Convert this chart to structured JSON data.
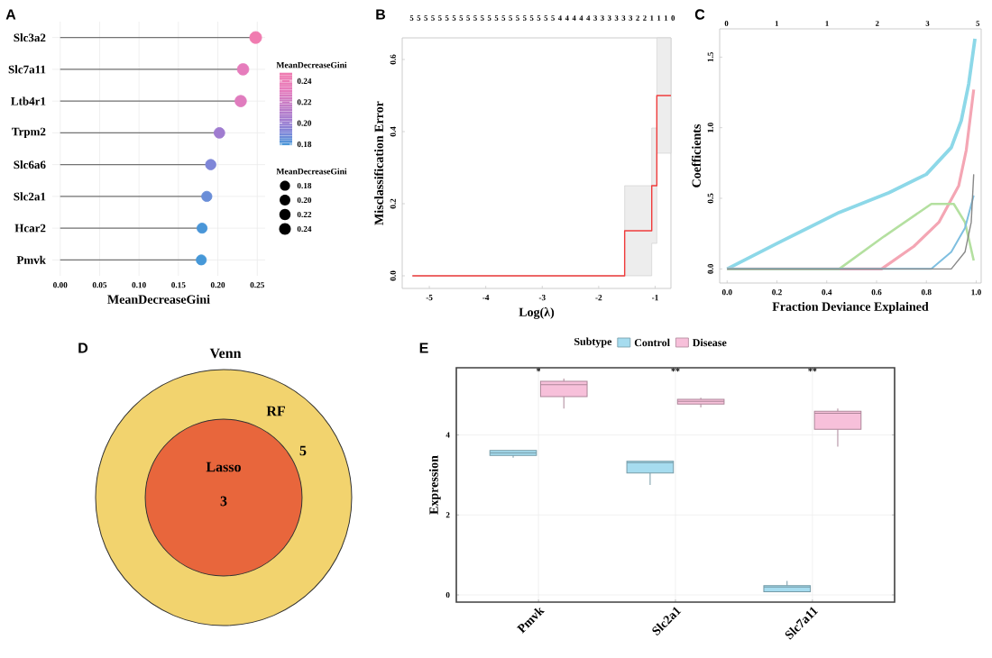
{
  "chart_data": [
    {
      "type": "lollipop",
      "orientation": "horizontal",
      "annotations": [
        "A"
      ],
      "categories": [
        "Slc3a2",
        "Slc7a11",
        "Ltb4r1",
        "Trpm2",
        "Slc6a6",
        "Slc2a1",
        "Hcar2",
        "Pmvk"
      ],
      "values": [
        0.248,
        0.232,
        0.229,
        0.202,
        0.191,
        0.186,
        0.18,
        0.179
      ],
      "colors": [
        "#f07cb0",
        "#e67cbc",
        "#e07cbe",
        "#a07cd0",
        "#7e86d8",
        "#6a8ed8",
        "#4a96d8",
        "#4698d8"
      ],
      "sizes": [
        0.248,
        0.232,
        0.229,
        0.202,
        0.191,
        0.186,
        0.18,
        0.179
      ],
      "size_legend": [
        {
          "value": 0.18,
          "label": "0.18"
        },
        {
          "value": 0.2,
          "label": "0.20"
        },
        {
          "value": 0.22,
          "label": "0.22"
        },
        {
          "value": 0.24,
          "label": "0.24"
        }
      ],
      "legend_title": "MeanDecreaseGini",
      "clabel": "MeanDecreaseGini",
      "clim": [
        0.179,
        0.248
      ],
      "cticks": [
        {
          "value": 0.18,
          "label": "0.18"
        },
        {
          "value": 0.2,
          "label": "0.20"
        },
        {
          "value": 0.22,
          "label": "0.22"
        },
        {
          "value": 0.24,
          "label": "0.24"
        }
      ],
      "xlabel": "MeanDecreaseGini",
      "xlim": [
        -0.01,
        0.26
      ],
      "xticks": [
        {
          "value": 0,
          "label": "0.00"
        },
        {
          "value": 0.05,
          "label": "0.05"
        },
        {
          "value": 0.1,
          "label": "0.10"
        },
        {
          "value": 0.15,
          "label": "0.15"
        },
        {
          "value": 0.2,
          "label": "0.20"
        },
        {
          "value": 0.25,
          "label": "0.25"
        }
      ],
      "grid": true
    },
    {
      "type": "step",
      "annotations": [
        "B",
        "5 5 5 5 5 5 5 5 5 5 5 5 5 5 5 5 5 5 5 5 5 4 4 4 4 4 3 3 3 3 3 3 2 2 1 1 1 0"
      ],
      "xlabel": "Log(λ)",
      "ylabel": "Misclassification Error",
      "xlim": [
        -5.48,
        -0.72
      ],
      "ylim": [
        -0.035,
        0.66
      ],
      "xticks": [
        -5,
        -4,
        -3,
        -2,
        -1
      ],
      "yticks": [
        {
          "value": 0,
          "label": "0.0"
        },
        {
          "value": 0.2,
          "label": "0.2"
        },
        {
          "value": 0.4,
          "label": "0.4"
        },
        {
          "value": 0.6,
          "label": "0.6"
        }
      ],
      "series": [
        {
          "color": "#f03c3c",
          "x": [
            -5.3,
            -1.54,
            -1.06,
            -0.97,
            -0.72
          ],
          "values": [
            0,
            0.125,
            0.25,
            0.5,
            0.5
          ],
          "lower": [
            0,
            0,
            0.09,
            0.34,
            0.34
          ],
          "upper": [
            0,
            0.25,
            0.41,
            0.66,
            0.66
          ]
        }
      ]
    },
    {
      "type": "line",
      "annotations": [
        "C",
        "0 1 1 2 3 5"
      ],
      "xlabel": "Fraction Deviance Explained",
      "ylabel": "Coefficients",
      "xlim": [
        -0.03,
        1.02
      ],
      "ylim": [
        -0.1,
        1.7
      ],
      "xticks": [
        {
          "value": 0,
          "label": "0.0"
        },
        {
          "value": 0.2,
          "label": "0.2"
        },
        {
          "value": 0.4,
          "label": "0.4"
        },
        {
          "value": 0.6,
          "label": "0.6"
        },
        {
          "value": 0.8,
          "label": "0.8"
        },
        {
          "value": 1,
          "label": "1.0"
        }
      ],
      "yticks": [
        {
          "value": 0,
          "label": "0.0"
        },
        {
          "value": 0.5,
          "label": "0.5"
        },
        {
          "value": 1,
          "label": "1.0"
        },
        {
          "value": 1.5,
          "label": "1.5"
        }
      ],
      "series": [
        {
          "color": "#8dd8e8",
          "x": [
            0,
            0.2,
            0.45,
            0.65,
            0.8,
            0.9,
            0.94,
            0.97,
            0.995
          ],
          "values": [
            0,
            0.18,
            0.4,
            0.54,
            0.67,
            0.86,
            1.05,
            1.31,
            1.63
          ]
        },
        {
          "color": "#f4a6b4",
          "x": [
            0,
            0.62,
            0.75,
            0.85,
            0.93,
            0.96,
            0.99
          ],
          "values": [
            0,
            0,
            0.16,
            0.33,
            0.59,
            0.84,
            1.27
          ]
        },
        {
          "color": "#b4e0a0",
          "x": [
            0,
            0.45,
            0.63,
            0.82,
            0.91,
            0.955,
            0.99
          ],
          "values": [
            0,
            0,
            0.23,
            0.46,
            0.46,
            0.33,
            0.06
          ]
        },
        {
          "color": "#7fbfe0",
          "x": [
            0,
            0.82,
            0.9,
            0.955,
            0.99
          ],
          "values": [
            0,
            0,
            0.12,
            0.29,
            0.52
          ]
        },
        {
          "color": "#888888",
          "x": [
            0,
            0.9,
            0.955,
            0.98,
            0.99
          ],
          "values": [
            0,
            0,
            0.12,
            0.33,
            0.67
          ]
        }
      ]
    },
    {
      "type": "other",
      "annotations": [
        "D"
      ],
      "title": "Venn",
      "categories": [
        "RF",
        "Lasso"
      ],
      "values": [
        5,
        3
      ],
      "value_labels": [
        "5",
        "3"
      ],
      "colors": [
        "#f2d36e",
        "#e8663c"
      ]
    },
    {
      "type": "box",
      "annotations": [
        "E",
        "*",
        "**",
        "**"
      ],
      "categories": [
        "Pmvk",
        "Slc2a1",
        "Slc7a11"
      ],
      "ylabel": "Expression",
      "ylim": [
        -0.18,
        5.68
      ],
      "yticks": [
        0,
        2,
        4
      ],
      "grid": true,
      "legend": "top",
      "legend_title": "Subtype",
      "series": [
        {
          "name": "Control",
          "color": "#a6dcef",
          "boxes": [
            {
              "low": 3.43,
              "q1": 3.49,
              "median": 3.55,
              "q3": 3.61,
              "high": 3.62
            },
            {
              "low": 2.75,
              "q1": 3.05,
              "median": 3.31,
              "q3": 3.34,
              "high": 3.34
            },
            {
              "low": 0.08,
              "q1": 0.08,
              "median": 0.2,
              "q3": 0.23,
              "high": 0.35
            }
          ]
        },
        {
          "name": "Disease",
          "color": "#f7c0da",
          "boxes": [
            {
              "low": 4.66,
              "q1": 4.96,
              "median": 5.26,
              "q3": 5.34,
              "high": 5.41
            },
            {
              "low": 4.69,
              "q1": 4.77,
              "median": 4.84,
              "q3": 4.89,
              "high": 4.93
            },
            {
              "low": 3.71,
              "q1": 4.14,
              "median": 4.54,
              "q3": 4.59,
              "high": 4.66
            }
          ]
        }
      ]
    }
  ]
}
